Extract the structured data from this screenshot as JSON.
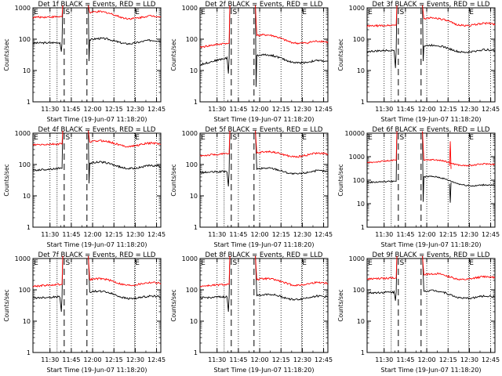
{
  "shared": {
    "title_suffix": "BLACK = Events, RED = LLD",
    "xlabel": "Start Time (19-Jun-07 11:18:20)",
    "ylabel": "Counts/sec",
    "x_tick_labels": [
      "11:30",
      "11:45",
      "12:00",
      "12:15",
      "12:30",
      "12:45"
    ],
    "marker_s": "S",
    "marker_e": "E",
    "events_color": "#000000",
    "lld_color": "#ff0000"
  },
  "chart_data": [
    {
      "type": "line",
      "title_prefix": "Det 1f",
      "ylim": [
        1,
        1000
      ],
      "y_tick_labels": [
        "1",
        "10",
        "100",
        "1000"
      ],
      "x_range_minutes": [
        0,
        90
      ],
      "series": [
        {
          "name": "Events",
          "pre": [
            75,
            78
          ],
          "post": [
            95,
            80
          ],
          "dip_pre": 40,
          "dip_post": 20
        },
        {
          "name": "LLD",
          "pre": [
            500,
            520
          ],
          "post": [
            700,
            480
          ],
          "dip_pre": null,
          "dip_post": null
        }
      ]
    },
    {
      "type": "line",
      "title_prefix": "Det 2f",
      "ylim": [
        1,
        1000
      ],
      "y_tick_labels": [
        "1",
        "10",
        "100",
        "1000"
      ],
      "x_range_minutes": [
        0,
        90
      ],
      "series": [
        {
          "name": "Events",
          "pre": [
            15,
            25
          ],
          "post": [
            30,
            18
          ],
          "dip_pre": 8,
          "dip_post": 3
        },
        {
          "name": "LLD",
          "pre": [
            55,
            75
          ],
          "post": [
            130,
            75
          ],
          "dip_pre": null,
          "dip_post": null
        }
      ]
    },
    {
      "type": "line",
      "title_prefix": "Det 3f",
      "ylim": [
        1,
        1000
      ],
      "y_tick_labels": [
        "1",
        "10",
        "100",
        "1000"
      ],
      "x_range_minutes": [
        0,
        90
      ],
      "series": [
        {
          "name": "Events",
          "pre": [
            40,
            45
          ],
          "post": [
            60,
            40
          ],
          "dip_pre": 12,
          "dip_post": 20
        },
        {
          "name": "LLD",
          "pre": [
            260,
            280
          ],
          "post": [
            450,
            280
          ],
          "dip_pre": null,
          "dip_post": null
        }
      ]
    },
    {
      "type": "line",
      "title_prefix": "Det 4f",
      "ylim": [
        1,
        1000
      ],
      "y_tick_labels": [
        "1",
        "10",
        "100",
        "1000"
      ],
      "x_range_minutes": [
        0,
        90
      ],
      "series": [
        {
          "name": "Events",
          "pre": [
            65,
            75
          ],
          "post": [
            110,
            80
          ],
          "dip_pre": null,
          "dip_post": 25
        },
        {
          "name": "LLD",
          "pre": [
            420,
            450
          ],
          "post": [
            520,
            420
          ],
          "dip_pre": null,
          "dip_post": null
        }
      ]
    },
    {
      "type": "line",
      "title_prefix": "Det 5f",
      "ylim": [
        1,
        1000
      ],
      "y_tick_labels": [
        "1",
        "10",
        "100",
        "1000"
      ],
      "x_range_minutes": [
        0,
        90
      ],
      "series": [
        {
          "name": "Events",
          "pre": [
            55,
            60
          ],
          "post": [
            70,
            55
          ],
          "dip_pre": 20,
          "dip_post": null
        },
        {
          "name": "LLD",
          "pre": [
            190,
            220
          ],
          "post": [
            230,
            200
          ],
          "dip_pre": null,
          "dip_post": null
        }
      ]
    },
    {
      "type": "line",
      "title_prefix": "Det 6f",
      "ylim": [
        1,
        10000
      ],
      "y_tick_labels": [
        "1",
        "10",
        "100",
        "1000",
        "10000"
      ],
      "x_range_minutes": [
        0,
        90
      ],
      "series": [
        {
          "name": "Events",
          "pre": [
            80,
            90
          ],
          "post": [
            140,
            55
          ],
          "dip_pre": null,
          "dip_post": 12
        },
        {
          "name": "LLD",
          "pre": [
            550,
            700
          ],
          "post": [
            700,
            430
          ],
          "dip_pre": null,
          "dip_post": null
        }
      ]
    },
    {
      "type": "line",
      "title_prefix": "Det 7f",
      "ylim": [
        1,
        1000
      ],
      "y_tick_labels": [
        "1",
        "10",
        "100",
        "1000"
      ],
      "x_range_minutes": [
        0,
        90
      ],
      "series": [
        {
          "name": "Events",
          "pre": [
            55,
            60
          ],
          "post": [
            85,
            55
          ],
          "dip_pre": 20,
          "dip_post": null
        },
        {
          "name": "LLD",
          "pre": [
            130,
            150
          ],
          "post": [
            210,
            150
          ],
          "dip_pre": null,
          "dip_post": null
        }
      ]
    },
    {
      "type": "line",
      "title_prefix": "Det 8f",
      "ylim": [
        1,
        1000
      ],
      "y_tick_labels": [
        "1",
        "10",
        "100",
        "1000"
      ],
      "x_range_minutes": [
        0,
        90
      ],
      "series": [
        {
          "name": "Events",
          "pre": [
            55,
            60
          ],
          "post": [
            65,
            55
          ],
          "dip_pre": 20,
          "dip_post": null
        },
        {
          "name": "LLD",
          "pre": [
            130,
            150
          ],
          "post": [
            210,
            150
          ],
          "dip_pre": null,
          "dip_post": null
        }
      ]
    },
    {
      "type": "line",
      "title_prefix": "Det 9f",
      "ylim": [
        1,
        1000
      ],
      "y_tick_labels": [
        "1",
        "10",
        "100",
        "1000"
      ],
      "x_range_minutes": [
        0,
        90
      ],
      "series": [
        {
          "name": "Events",
          "pre": [
            80,
            85
          ],
          "post": [
            90,
            55
          ],
          "dip_pre": 45,
          "dip_post": null
        },
        {
          "name": "LLD",
          "pre": [
            220,
            240
          ],
          "post": [
            300,
            230
          ],
          "dip_pre": null,
          "dip_post": null
        }
      ]
    }
  ]
}
